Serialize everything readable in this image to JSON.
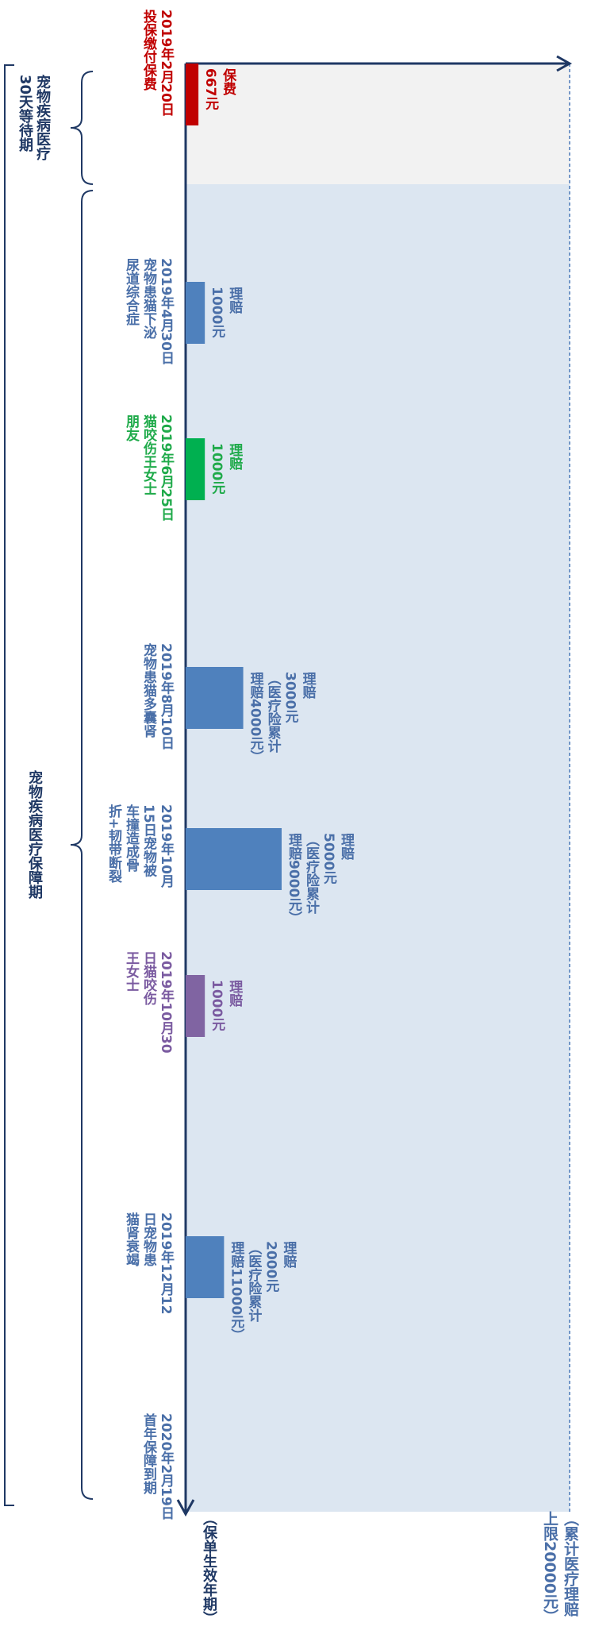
{
  "colors": {
    "axis": "#1f3864",
    "bar_default": "#4f81bd",
    "premium": "#c00000",
    "green": "#00b050",
    "purple": "#8064a2",
    "coverage_band": "#dce6f1",
    "waiting_band": "#f2f2f2",
    "bracket": "#1f3864"
  },
  "axis_labels": {
    "time": "（保单生效年期）",
    "limit": "（累计医疗理赔\n上限20000元）"
  },
  "periods": {
    "waiting": "宠物疾病医疗\n30天等待期",
    "coverage": "宠物疾病医疗保障期"
  },
  "chart_data": {
    "type": "bar",
    "xlabel": "（保单生效年期）",
    "ylabel": "（累计医疗理赔上限20000元）",
    "ylim": [
      0,
      20000
    ],
    "categories": [
      "2019年2月20日",
      "2019年4月30日",
      "2019年6月25日",
      "2019年8月10日",
      "2019年10月15日",
      "2019年10月30日",
      "2019年12月12日",
      "2020年2月19日"
    ],
    "events": [
      {
        "date_label": "2019年2月20日\n投保缴付保费",
        "value": 667,
        "bar_label": "保费\n667元",
        "color": "#c00000",
        "text_class": "red-txt"
      },
      {
        "date_label": "2019年4月30日\n宠物患猫下泌\n尿道综合症",
        "value": 1000,
        "bar_label": "理赔\n1000元",
        "color": "#4f81bd",
        "text_class": "blue-txt"
      },
      {
        "date_label": "2019年6月25日\n猫咬伤王女士\n朋友",
        "value": 1000,
        "bar_label": "理赔\n1000元",
        "color": "#00b050",
        "text_class": "green-txt"
      },
      {
        "date_label": "2019年8月10日\n宠物患猫多囊肾",
        "value": 3000,
        "bar_label": "理赔\n3000元\n（医疗险累计\n理赔4000元）",
        "color": "#4f81bd",
        "text_class": "blue-txt"
      },
      {
        "date_label": "2019年10月\n15日宠物被\n车撞造成骨\n折+韧带断裂",
        "value": 5000,
        "bar_label": "理赔\n5000元\n（医疗险累计\n理赔9000元）",
        "color": "#4f81bd",
        "text_class": "blue-txt"
      },
      {
        "date_label": "2019年10月30\n日猫咬伤\n王女士",
        "value": 1000,
        "bar_label": "理赔\n1000元",
        "color": "#8064a2",
        "text_class": "purple-txt"
      },
      {
        "date_label": "2019年12月12\n日宠物患\n猫肾衰竭",
        "value": 2000,
        "bar_label": "理赔\n2000元\n（医疗险累计\n理赔11000元）",
        "color": "#4f81bd",
        "text_class": "blue-txt"
      },
      {
        "date_label": "2020年2月19日\n首年保障到期",
        "value": 0,
        "bar_label": "",
        "color": "#4f81bd",
        "text_class": "blue-txt"
      }
    ]
  }
}
